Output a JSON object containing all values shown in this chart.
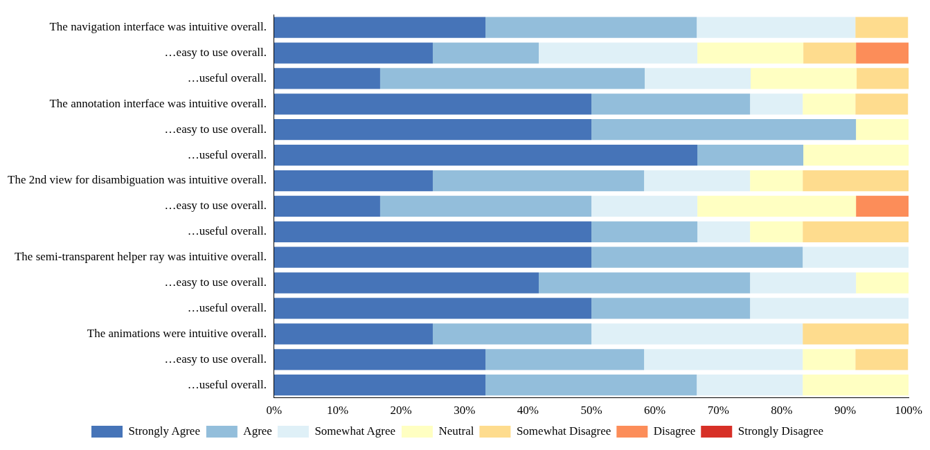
{
  "chart_data": {
    "type": "bar",
    "orientation": "horizontal",
    "stacked": true,
    "categories": [
      "The navigation interface was intuitive overall.",
      "…easy to use overall.",
      "…useful overall.",
      "The annotation interface was intuitive overall.",
      "…easy to use overall.",
      "…useful overall.",
      "The 2nd view for disambiguation was intuitive overall.",
      "…easy to use overall.",
      "…useful overall.",
      "The semi-transparent helper ray was intuitive overall.",
      "…easy to use overall.",
      "…useful overall.",
      "The animations were intuitive overall.",
      "…easy to use overall.",
      "…useful overall."
    ],
    "series": [
      {
        "name": "Strongly Agree",
        "color": "#4674b8",
        "values": [
          33.3,
          25,
          16.7,
          50,
          50,
          66.7,
          25,
          16.7,
          50,
          50,
          41.7,
          50,
          25,
          33.3,
          33.3
        ]
      },
      {
        "name": "Agree",
        "color": "#93bedb",
        "values": [
          33.3,
          16.7,
          41.7,
          25,
          41.7,
          16.7,
          33.3,
          33.3,
          16.7,
          33.3,
          33.3,
          25,
          25,
          25,
          33.3
        ]
      },
      {
        "name": "Somewhat Agree",
        "color": "#dff0f7",
        "values": [
          25,
          25,
          16.7,
          8.3,
          0,
          0,
          16.7,
          16.7,
          8.3,
          16.7,
          16.7,
          25,
          33.3,
          25,
          16.7
        ]
      },
      {
        "name": "Neutral",
        "color": "#ffffc2",
        "values": [
          0,
          16.7,
          16.7,
          8.3,
          8.3,
          16.7,
          8.3,
          25,
          8.3,
          0,
          8.3,
          0,
          0,
          8.3,
          16.7
        ]
      },
      {
        "name": "Somewhat Disagree",
        "color": "#fedc8e",
        "values": [
          8.3,
          8.3,
          8.3,
          8.3,
          0,
          0,
          16.7,
          0,
          16.7,
          0,
          0,
          0,
          16.7,
          8.3,
          0
        ]
      },
      {
        "name": "Disagree",
        "color": "#fc8d59",
        "values": [
          0,
          8.3,
          0,
          0,
          0,
          0,
          0,
          8.3,
          0,
          0,
          0,
          0,
          0,
          0,
          0
        ]
      },
      {
        "name": "Strongly Disagree",
        "color": "#d73027",
        "values": [
          0,
          0,
          0,
          0,
          0,
          0,
          0,
          0,
          0,
          0,
          0,
          0,
          0,
          0,
          0
        ]
      }
    ],
    "xlim": [
      0,
      100
    ],
    "xticks": [
      {
        "value": 0,
        "label": "0%"
      },
      {
        "value": 10,
        "label": "10%"
      },
      {
        "value": 20,
        "label": "20%"
      },
      {
        "value": 30,
        "label": "30%"
      },
      {
        "value": 40,
        "label": "40%"
      },
      {
        "value": 50,
        "label": "50%"
      },
      {
        "value": 60,
        "label": "60%"
      },
      {
        "value": 70,
        "label": "70%"
      },
      {
        "value": 80,
        "label": "80%"
      },
      {
        "value": 90,
        "label": "90%"
      },
      {
        "value": 100,
        "label": "100%"
      }
    ],
    "grid": false,
    "legend": "bottom"
  }
}
